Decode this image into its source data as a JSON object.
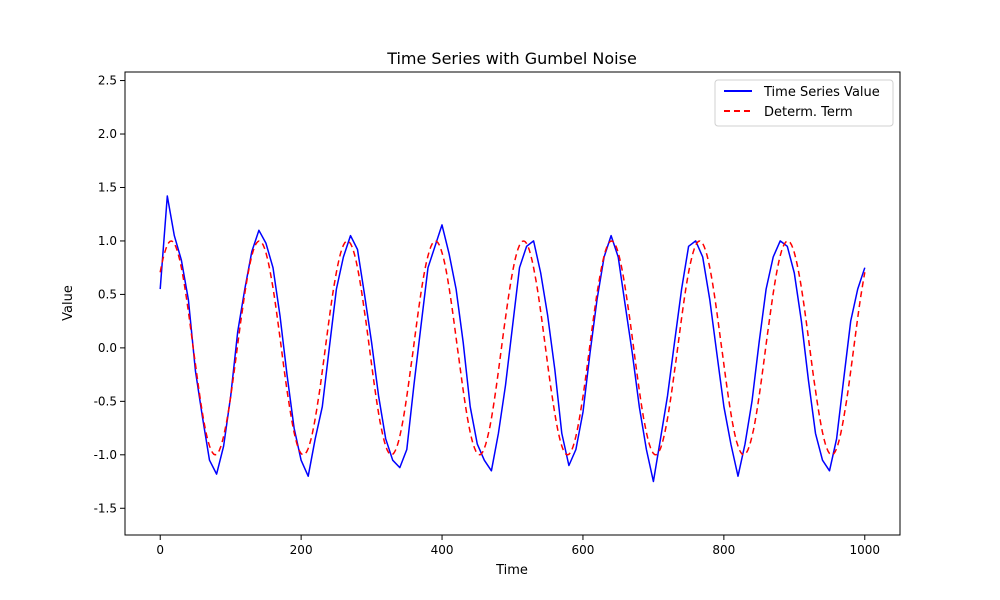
{
  "chart_data": {
    "type": "line",
    "title": "Time Series with Gumbel Noise",
    "xlabel": "Time",
    "ylabel": "Value",
    "xlim": [
      -50,
      1050
    ],
    "ylim": [
      -1.75,
      2.58
    ],
    "xticks": [
      0,
      200,
      400,
      600,
      800,
      1000
    ],
    "yticks": [
      -1.5,
      -1.0,
      -0.5,
      0.0,
      0.5,
      1.0,
      1.5,
      2.0,
      2.5
    ],
    "grid": false,
    "legend_position": "top-right",
    "series": [
      {
        "name": "Time Series Value",
        "color": "#0000ff",
        "style": "solid",
        "x": [
          0,
          10,
          20,
          30,
          40,
          50,
          60,
          70,
          80,
          90,
          100,
          110,
          120,
          130,
          140,
          150,
          160,
          170,
          180,
          190,
          200,
          210,
          220,
          230,
          240,
          250,
          260,
          270,
          280,
          290,
          300,
          310,
          320,
          330,
          340,
          350,
          360,
          370,
          380,
          390,
          400,
          410,
          420,
          430,
          440,
          450,
          460,
          470,
          480,
          490,
          500,
          510,
          520,
          530,
          540,
          550,
          560,
          570,
          580,
          590,
          600,
          610,
          620,
          630,
          640,
          650,
          660,
          670,
          680,
          690,
          700,
          710,
          720,
          730,
          740,
          750,
          760,
          770,
          780,
          790,
          800,
          810,
          820,
          830,
          840,
          850,
          860,
          870,
          880,
          890,
          900,
          910,
          920,
          930,
          940,
          950,
          960,
          970,
          980,
          990,
          1000
        ],
        "values": [
          0.55,
          1.42,
          1.05,
          0.82,
          0.45,
          -0.22,
          -0.65,
          -1.05,
          -1.18,
          -0.92,
          -0.45,
          0.15,
          0.55,
          0.9,
          1.1,
          0.98,
          0.75,
          0.3,
          -0.25,
          -0.75,
          -1.05,
          -1.2,
          -0.85,
          -0.55,
          0.0,
          0.55,
          0.85,
          1.05,
          0.92,
          0.5,
          0.05,
          -0.45,
          -0.85,
          -1.05,
          -1.12,
          -0.95,
          -0.35,
          0.2,
          0.75,
          0.95,
          1.15,
          0.88,
          0.55,
          0.05,
          -0.55,
          -0.9,
          -1.05,
          -1.15,
          -0.8,
          -0.35,
          0.2,
          0.75,
          0.95,
          1.0,
          0.7,
          0.3,
          -0.2,
          -0.8,
          -1.1,
          -0.95,
          -0.6,
          -0.05,
          0.45,
          0.85,
          1.05,
          0.85,
          0.4,
          -0.05,
          -0.55,
          -0.95,
          -1.25,
          -0.85,
          -0.45,
          0.05,
          0.55,
          0.95,
          1.0,
          0.85,
          0.45,
          -0.05,
          -0.55,
          -0.9,
          -1.2,
          -0.9,
          -0.5,
          0.05,
          0.55,
          0.85,
          1.0,
          0.95,
          0.7,
          0.25,
          -0.3,
          -0.8,
          -1.05,
          -1.15,
          -0.85,
          -0.3,
          0.25,
          0.55,
          0.75
        ]
      },
      {
        "name": "Determ. Term",
        "color": "#ff0000",
        "style": "dashed",
        "period": 125,
        "amplitude": 1.0,
        "x_range": [
          0,
          1000
        ]
      }
    ]
  }
}
